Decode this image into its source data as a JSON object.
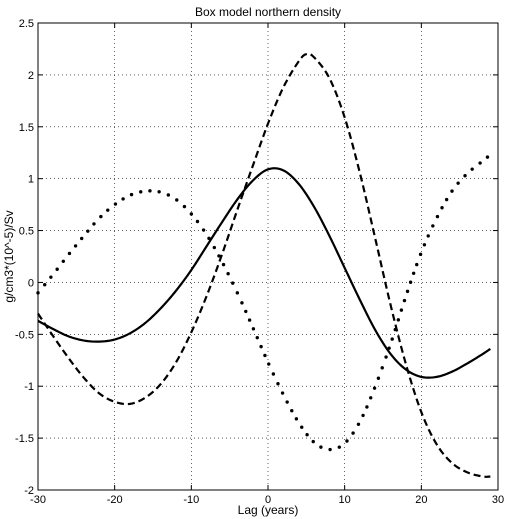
{
  "chart_data": {
    "type": "line",
    "title": "Box model northern density",
    "xlabel": "Lag (years)",
    "ylabel": "g/cm3*(10^-5)/Sv",
    "xlim": [
      -30,
      30
    ],
    "ylim": [
      -2,
      2.5
    ],
    "xticks": [
      -30,
      -20,
      -10,
      0,
      10,
      20,
      30
    ],
    "yticks": [
      -2,
      -1.5,
      -1,
      -0.5,
      0,
      0.5,
      1,
      1.5,
      2,
      2.5
    ],
    "grid": true,
    "legend": "none",
    "series": [
      {
        "style": "solid",
        "color": "#000000",
        "x": [
          -30,
          -28,
          -26,
          -24,
          -22,
          -20,
          -18,
          -16,
          -14,
          -12,
          -10,
          -8,
          -6,
          -4,
          -2,
          0,
          2,
          4,
          6,
          8,
          10,
          12,
          14,
          16,
          18,
          20,
          22,
          24,
          26,
          28,
          29
        ],
        "y": [
          -0.37,
          -0.45,
          -0.52,
          -0.56,
          -0.57,
          -0.55,
          -0.49,
          -0.39,
          -0.25,
          -0.08,
          0.12,
          0.35,
          0.58,
          0.8,
          0.98,
          1.09,
          1.08,
          0.95,
          0.73,
          0.45,
          0.14,
          -0.17,
          -0.46,
          -0.69,
          -0.84,
          -0.91,
          -0.91,
          -0.86,
          -0.78,
          -0.69,
          -0.64
        ]
      },
      {
        "style": "dashed",
        "color": "#000000",
        "x": [
          -30,
          -28,
          -26,
          -24,
          -22,
          -20,
          -18,
          -16,
          -14,
          -12,
          -10,
          -8,
          -6,
          -4,
          -2,
          0,
          2,
          4,
          5,
          6,
          8,
          10,
          12,
          14,
          16,
          18,
          20,
          22,
          24,
          26,
          28,
          29
        ],
        "y": [
          -0.3,
          -0.52,
          -0.73,
          -0.92,
          -1.07,
          -1.15,
          -1.17,
          -1.11,
          -0.98,
          -0.77,
          -0.48,
          -0.13,
          0.27,
          0.7,
          1.12,
          1.53,
          1.88,
          2.13,
          2.2,
          2.17,
          1.97,
          1.59,
          1.05,
          0.42,
          -0.22,
          -0.79,
          -1.25,
          -1.56,
          -1.74,
          -1.83,
          -1.87,
          -1.87
        ]
      },
      {
        "style": "dotted",
        "color": "#000000",
        "x": [
          -30,
          -28,
          -26,
          -24,
          -22,
          -20,
          -18,
          -16,
          -14,
          -12,
          -10,
          -8,
          -6,
          -4,
          -2,
          0,
          2,
          4,
          6,
          8,
          10,
          12,
          14,
          16,
          18,
          20,
          22,
          24,
          26,
          28,
          29
        ],
        "y": [
          -0.1,
          0.08,
          0.27,
          0.45,
          0.62,
          0.75,
          0.84,
          0.88,
          0.87,
          0.8,
          0.66,
          0.46,
          0.2,
          -0.1,
          -0.43,
          -0.77,
          -1.08,
          -1.35,
          -1.54,
          -1.61,
          -1.55,
          -1.34,
          -1.0,
          -0.59,
          -0.13,
          0.29,
          0.62,
          0.88,
          1.05,
          1.17,
          1.23
        ]
      }
    ]
  }
}
